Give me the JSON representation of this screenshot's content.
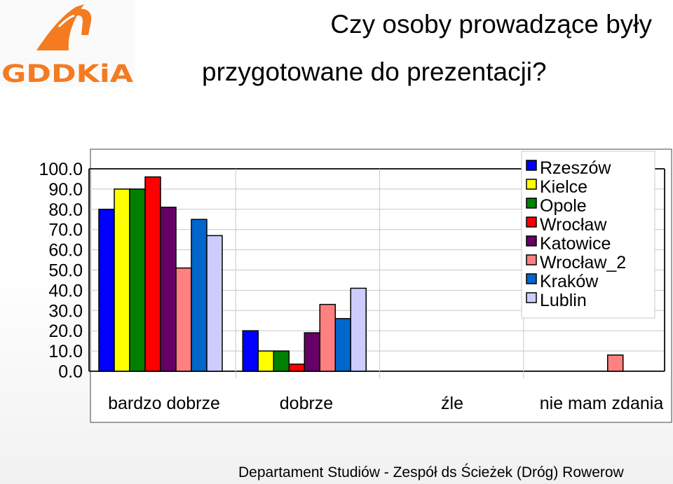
{
  "logo": {
    "text": "GDDKiA",
    "color": "#f47b20"
  },
  "title_line1": "Czy osoby prowadzące były",
  "title_line2": "przygotowane do prezentacji?",
  "footer": "Departament Studiów - Zespół ds Ścieżek (Dróg) Rowerow",
  "chart_data": {
    "type": "bar",
    "categories": [
      "bardzo dobrze",
      "dobrze",
      "źle",
      "nie mam zdania"
    ],
    "ylim": [
      0,
      100
    ],
    "yticks": [
      "0.0",
      "10.0",
      "20.0",
      "30.0",
      "40.0",
      "50.0",
      "60.0",
      "70.0",
      "80.0",
      "90.0",
      "100.0"
    ],
    "grid": true,
    "legend_position": "top-right",
    "series": [
      {
        "name": "Rzeszów",
        "color": "#0000ff",
        "values": [
          80,
          20,
          0,
          0
        ]
      },
      {
        "name": "Kielce",
        "color": "#ffff00",
        "values": [
          90,
          10,
          0,
          0
        ]
      },
      {
        "name": "Opole",
        "color": "#008000",
        "values": [
          90,
          10,
          0,
          0
        ]
      },
      {
        "name": "Wrocław",
        "color": "#ff0000",
        "values": [
          96,
          3.5,
          0,
          0
        ]
      },
      {
        "name": "Katowice",
        "color": "#660066",
        "values": [
          81,
          19,
          0,
          0
        ]
      },
      {
        "name": "Wrocław_2",
        "color": "#ff8080",
        "values": [
          51,
          33,
          0,
          8
        ]
      },
      {
        "name": "Kraków",
        "color": "#0066cc",
        "values": [
          75,
          26,
          0,
          0
        ]
      },
      {
        "name": "Lublin",
        "color": "#ccccff",
        "values": [
          67,
          41,
          0,
          0
        ]
      }
    ]
  }
}
